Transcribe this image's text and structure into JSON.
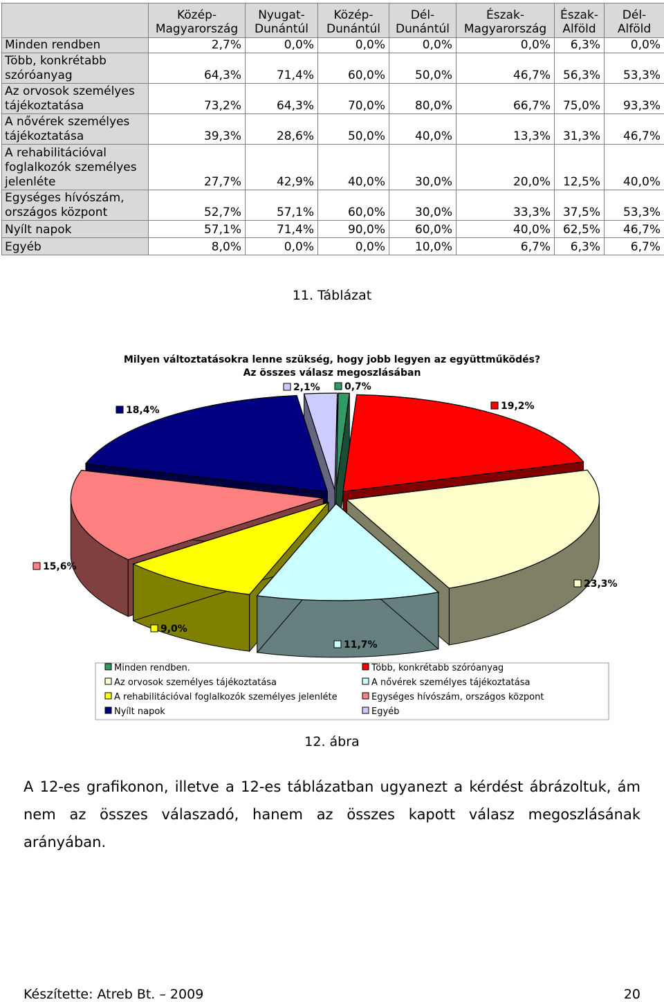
{
  "table": {
    "columns": [
      "Közép-Magyarország",
      "Nyugat-Dunántúl",
      "Közép-Dunántúl",
      "Dél-Dunántúl",
      "Észak-Magyarország",
      "Észak-Alföld",
      "Dél-Alföld"
    ],
    "rows": [
      {
        "label": "Minden rendben",
        "values": [
          "2,7%",
          "0,0%",
          "0,0%",
          "0,0%",
          "0,0%",
          "6,3%",
          "0,0%"
        ]
      },
      {
        "label": "Több, konkrétabb szóróanyag",
        "values": [
          "64,3%",
          "71,4%",
          "60,0%",
          "50,0%",
          "46,7%",
          "56,3%",
          "53,3%"
        ]
      },
      {
        "label": "Az orvosok személyes tájékoztatása",
        "values": [
          "73,2%",
          "64,3%",
          "70,0%",
          "80,0%",
          "66,7%",
          "75,0%",
          "93,3%"
        ]
      },
      {
        "label": "A nővérek személyes tájékoztatása",
        "values": [
          "39,3%",
          "28,6%",
          "50,0%",
          "40,0%",
          "13,3%",
          "31,3%",
          "46,7%"
        ]
      },
      {
        "label": "A rehabilitációval foglalkozók személyes jelenléte",
        "values": [
          "27,7%",
          "42,9%",
          "40,0%",
          "30,0%",
          "20,0%",
          "12,5%",
          "40,0%"
        ]
      },
      {
        "label": "Egységes hívószám, országos központ",
        "values": [
          "52,7%",
          "57,1%",
          "60,0%",
          "30,0%",
          "33,3%",
          "37,5%",
          "53,3%"
        ]
      },
      {
        "label": "Nyílt napok",
        "values": [
          "57,1%",
          "71,4%",
          "90,0%",
          "60,0%",
          "40,0%",
          "62,5%",
          "46,7%"
        ]
      },
      {
        "label": "Egyéb",
        "values": [
          "8,0%",
          "0,0%",
          "0,0%",
          "10,0%",
          "6,7%",
          "6,3%",
          "6,7%"
        ]
      }
    ]
  },
  "table_caption": "11. Táblázat",
  "chart_caption": "12. ábra",
  "chart_data": {
    "type": "pie",
    "title": "Milyen változtatásokra lenne szükség, hogy jobb legyen az együttműködés?",
    "subtitle": "Az összes válasz megoszlásában",
    "legend_position": "bottom",
    "slices": [
      {
        "name": "Minden rendben.",
        "value": 0.7,
        "label": "0,7%",
        "color": "#339966"
      },
      {
        "name": "Több, konkrétabb szóróanyag",
        "value": 19.2,
        "label": "19,2%",
        "color": "#ff0000"
      },
      {
        "name": "Az orvosok személyes tájékoztatása",
        "value": 23.3,
        "label": "23,3%",
        "color": "#ffffcc"
      },
      {
        "name": "A nővérek személyes tájékoztatása",
        "value": 11.7,
        "label": "11,7%",
        "color": "#ccffff"
      },
      {
        "name": "A rehabilitációval foglalkozók személyes jelenléte",
        "value": 9.0,
        "label": "9,0%",
        "color": "#ffff00"
      },
      {
        "name": "Egységes hívószám, országos központ",
        "value": 15.6,
        "label": "15,6%",
        "color": "#ff8080"
      },
      {
        "name": "Nyílt napok",
        "value": 18.4,
        "label": "18,4%",
        "color": "#000080"
      },
      {
        "name": "Egyéb",
        "value": 2.1,
        "label": "2,1%",
        "color": "#ccccff"
      }
    ]
  },
  "paragraph": "A 12-es grafikonon, illetve a 12-es táblázatban ugyanezt a kérdést ábrázoltuk, ám nem az összes válaszadó, hanem az összes kapott válasz megoszlásának arányában.",
  "footer": {
    "left": "Készítette: Atreb Bt. – 2009",
    "right": "20"
  }
}
